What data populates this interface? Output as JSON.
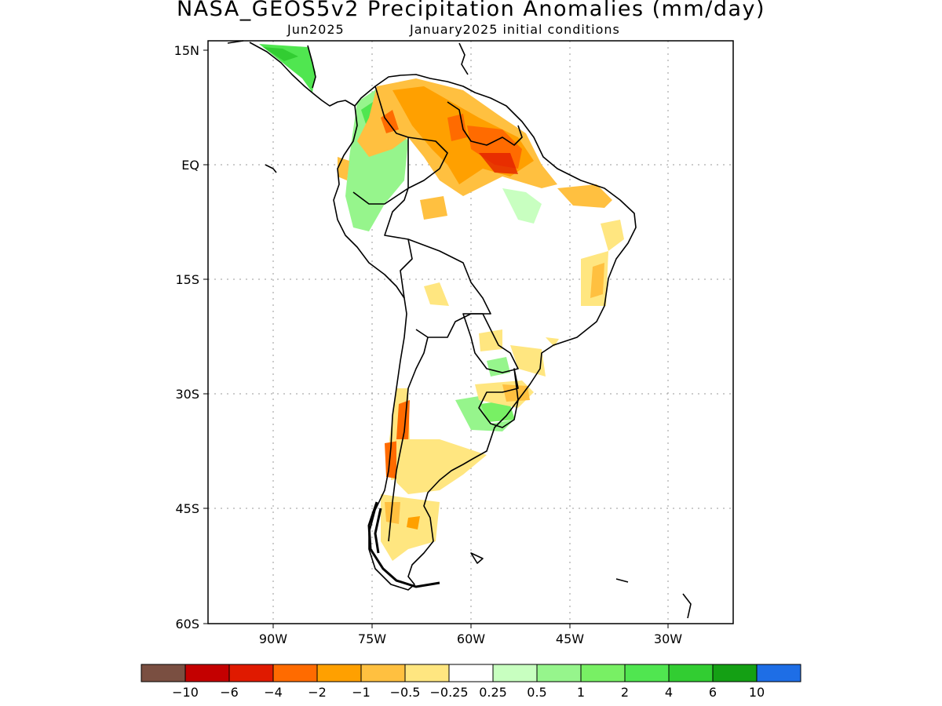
{
  "title": "NASA_GEOS5v2 Precipitation Anomalies (mm/day)",
  "subtitle_left": "Jun2025",
  "subtitle_right": "January2025 initial conditions",
  "lat_labels": [
    "15N",
    "EQ",
    "15S",
    "30S",
    "45S",
    "60S"
  ],
  "lon_labels": [
    "90W",
    "75W",
    "60W",
    "45W",
    "30W"
  ],
  "colorbar": {
    "colors": [
      "#7a4f41",
      "#c40000",
      "#e01a00",
      "#ff6b00",
      "#ffa000",
      "#ffc040",
      "#ffe680",
      "#ffffff",
      "#c8ffc0",
      "#96f58c",
      "#78f064",
      "#50e650",
      "#32cd32",
      "#14a014",
      "#1e6ee6"
    ],
    "labels": [
      "−10",
      "−6",
      "−4",
      "−2",
      "−1",
      "−0.5",
      "−0.25",
      "0.25",
      "0.5",
      "1",
      "2",
      "4",
      "6",
      "10"
    ]
  }
}
